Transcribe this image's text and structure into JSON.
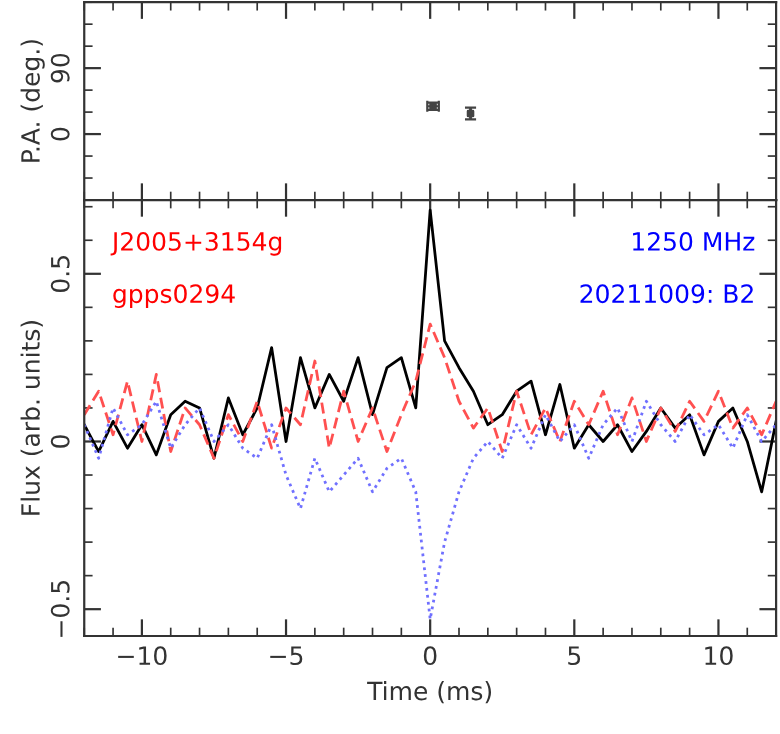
{
  "chart_data": [
    {
      "type": "scatter",
      "ylabel": "P.A. (deg.)",
      "x": [
        0.1,
        1.4
      ],
      "values": [
        38,
        28
      ],
      "errors": [
        5,
        8
      ],
      "xerrors": [
        0.2,
        null
      ],
      "color": "#444444",
      "xlim": [
        -12,
        12
      ],
      "ylim": [
        -90,
        180
      ],
      "xticks": [
        {
          "value": -10,
          "label": null
        },
        {
          "value": -5,
          "label": null
        },
        {
          "value": 0,
          "label": null
        },
        {
          "value": 5,
          "label": null
        },
        {
          "value": 10,
          "label": null
        }
      ],
      "yticks": [
        0,
        90
      ],
      "tick_labels": "y"
    },
    {
      "type": "line",
      "xlabel": "Time (ms)",
      "ylabel": "Flux (arb. units)",
      "annotations": [
        "J2005+3154g",
        "gpps0294",
        "1250 MHz",
        "20211009: B2"
      ],
      "x": [
        -12,
        -11.5,
        -11,
        -10.5,
        -10,
        -9.5,
        -9,
        -8.5,
        -8,
        -7.5,
        -7,
        -6.5,
        -6,
        -5.5,
        -5,
        -4.5,
        -4,
        -3.5,
        -3,
        -2.5,
        -2,
        -1.5,
        -1,
        -0.5,
        0,
        0.5,
        1,
        1.5,
        2,
        2.5,
        3,
        3.5,
        4,
        4.5,
        5,
        5.5,
        6,
        6.5,
        7,
        7.5,
        8,
        8.5,
        9,
        9.5,
        10,
        10.5,
        11,
        11.5,
        12
      ],
      "series": [
        {
          "color": "#000000",
          "line_style": "solid",
          "values": [
            0.05,
            -0.03,
            0.06,
            -0.02,
            0.05,
            -0.04,
            0.08,
            0.12,
            0.1,
            -0.05,
            0.13,
            0.02,
            0.1,
            0.28,
            0.0,
            0.25,
            0.1,
            0.2,
            0.12,
            0.25,
            0.08,
            0.22,
            0.25,
            0.1,
            0.69,
            0.3,
            0.22,
            0.15,
            0.05,
            0.08,
            0.15,
            0.18,
            0.02,
            0.17,
            -0.02,
            0.05,
            0.0,
            0.05,
            -0.03,
            0.03,
            0.1,
            0.04,
            0.08,
            -0.04,
            0.06,
            0.1,
            0.0,
            -0.15,
            0.06
          ]
        },
        {
          "color": "#ff5050",
          "line_style": "dashed",
          "values": [
            0.08,
            0.15,
            0.02,
            0.18,
            0.0,
            0.2,
            -0.03,
            0.1,
            0.05,
            -0.05,
            0.08,
            0.0,
            0.12,
            -0.02,
            0.1,
            0.05,
            0.24,
            -0.02,
            0.15,
            0.0,
            0.1,
            -0.03,
            0.08,
            0.18,
            0.35,
            0.25,
            0.12,
            0.04,
            0.1,
            -0.03,
            0.15,
            0.02,
            0.1,
            0.0,
            0.12,
            0.05,
            0.15,
            0.02,
            0.13,
            0.0,
            0.1,
            0.03,
            0.12,
            0.06,
            0.15,
            0.04,
            0.1,
            0.02,
            0.12
          ]
        },
        {
          "color": "#7070ff",
          "line_style": "dotted",
          "values": [
            0.05,
            -0.05,
            0.1,
            0.02,
            0.05,
            0.12,
            -0.02,
            0.05,
            0.1,
            0.0,
            0.05,
            -0.02,
            -0.05,
            0.05,
            -0.1,
            -0.2,
            -0.05,
            -0.15,
            -0.1,
            -0.05,
            -0.15,
            -0.08,
            -0.05,
            -0.15,
            -0.53,
            -0.3,
            -0.15,
            -0.05,
            0.0,
            -0.05,
            0.05,
            -0.02,
            0.08,
            0.0,
            0.05,
            -0.05,
            0.05,
            0.1,
            0.0,
            0.12,
            0.05,
            0.0,
            0.08,
            0.02,
            0.05,
            -0.02,
            0.08,
            0.0,
            0.05
          ]
        }
      ],
      "xlim": [
        -12,
        12
      ],
      "ylim": [
        -0.58,
        0.72
      ],
      "xticks": [
        {
          "value": -10,
          "label": "−10"
        },
        {
          "value": -5,
          "label": "−5"
        },
        0,
        5,
        10
      ],
      "yticks": [
        {
          "value": -0.5,
          "label": "−0.5"
        },
        0,
        0.5
      ]
    }
  ]
}
